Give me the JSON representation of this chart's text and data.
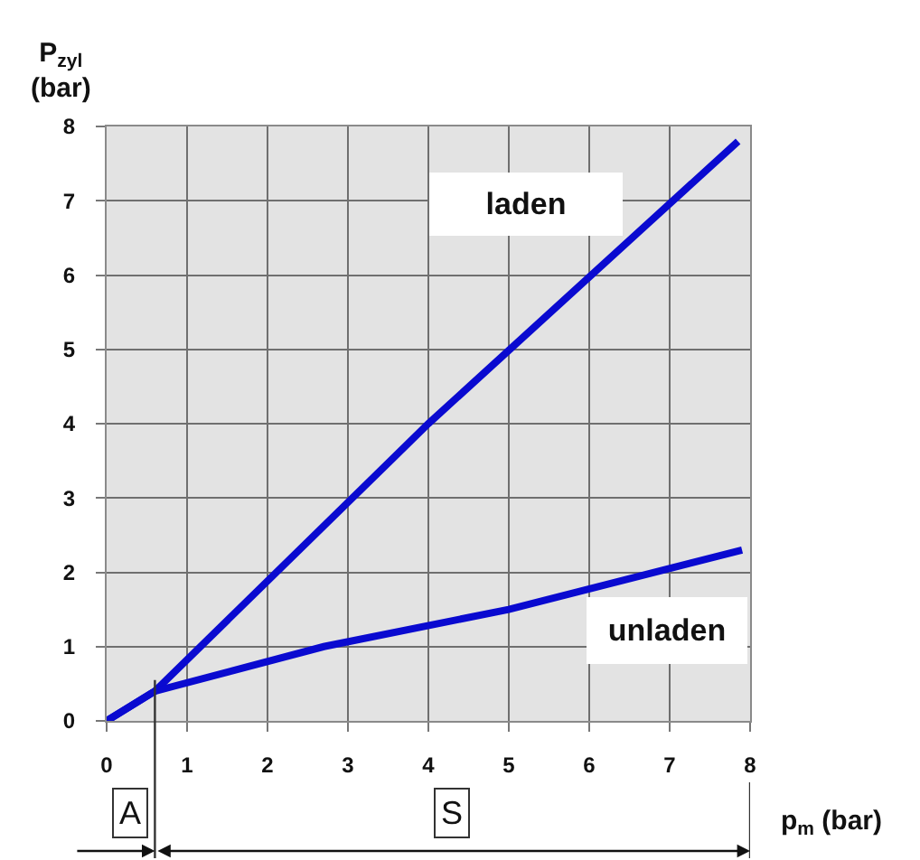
{
  "chart_data": {
    "type": "line",
    "xlabel": "p$_{m}$ (bar)",
    "ylabel": "P$_{zyl}$\n(bar)",
    "series": [
      {
        "name": "laden",
        "color": "#0a0ad0",
        "x": [
          0,
          0.6,
          4,
          7.85
        ],
        "values": [
          0,
          0.4,
          4,
          7.8
        ]
      },
      {
        "name": "unladen",
        "color": "#0a0ad0",
        "x": [
          0,
          0.6,
          2.7,
          5,
          7.9
        ],
        "values": [
          0,
          0.4,
          1,
          1.5,
          2.3
        ]
      }
    ],
    "xlim": [
      0,
      8
    ],
    "ylim": [
      0,
      8
    ],
    "xticks": [
      0,
      1,
      2,
      3,
      4,
      5,
      6,
      7,
      8
    ],
    "yticks": [
      0,
      1,
      2,
      3,
      4,
      5,
      6,
      7,
      8
    ],
    "grid": true,
    "legend": false,
    "marker": "none",
    "line_style": "solid",
    "annotations": [
      {
        "text": "A",
        "x": 0.6,
        "y": 0.55
      },
      "S"
    ]
  }
}
